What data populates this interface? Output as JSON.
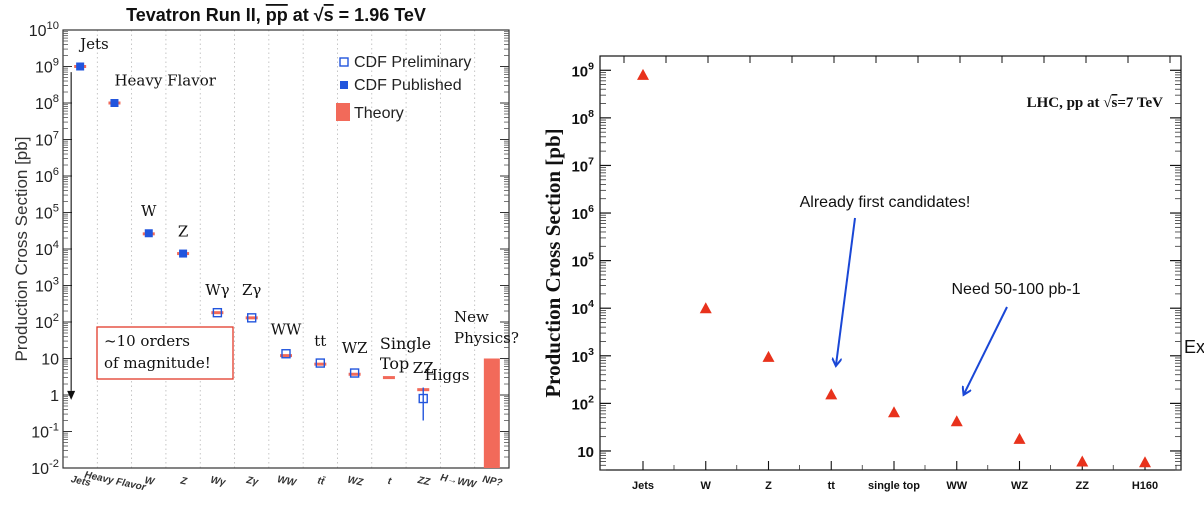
{
  "chart_data": [
    {
      "type": "scatter",
      "title": "Tevatron Run II, pp̄ at √s = 1.96 TeV",
      "title_parts": {
        "prefix": "Tevatron Run II, ",
        "pp": "pp",
        "mid": " at ",
        "s": "s",
        "suffix": " = 1.96 TeV"
      },
      "ylabel": "Production Cross Section [pb]",
      "yscale": "log",
      "ylim_exp": [
        -2,
        10
      ],
      "yticks": [
        {
          "v": 10000000000.0,
          "base": "10",
          "exp": "10"
        },
        {
          "v": 1000000000.0,
          "base": "10",
          "exp": "9"
        },
        {
          "v": 100000000.0,
          "base": "10",
          "exp": "8"
        },
        {
          "v": 10000000.0,
          "base": "10",
          "exp": "7"
        },
        {
          "v": 1000000.0,
          "base": "10",
          "exp": "6"
        },
        {
          "v": 100000.0,
          "base": "10",
          "exp": "5"
        },
        {
          "v": 10000.0,
          "base": "10",
          "exp": "4"
        },
        {
          "v": 1000.0,
          "base": "10",
          "exp": "3"
        },
        {
          "v": 100.0,
          "base": "10",
          "exp": "2"
        },
        {
          "v": 10,
          "base": "10",
          "exp": ""
        },
        {
          "v": 1,
          "base": "1",
          "exp": ""
        },
        {
          "v": 0.1,
          "base": "10",
          "exp": "-1"
        },
        {
          "v": 0.01,
          "base": "10",
          "exp": "-2"
        }
      ],
      "categories": [
        "Jets",
        "Heavy Flavor",
        "W",
        "Z",
        "Wγ",
        "Zγ",
        "WW",
        "tt̄",
        "WZ",
        "t",
        "ZZ",
        "H→WW",
        "NP?"
      ],
      "legend": {
        "position": "top-right",
        "entries": [
          {
            "label": "CDF Preliminary",
            "marker": "open-square",
            "color": "#2255dd"
          },
          {
            "label": "CDF Published",
            "marker": "filled-square",
            "color": "#2255dd"
          },
          {
            "label": "Theory",
            "marker": "bar",
            "color": "#f26a5a"
          }
        ]
      },
      "points": [
        {
          "label": "Jets",
          "x": 0,
          "y": 1000000000.0,
          "marker": "filled",
          "label_value": 3000000000.0
        },
        {
          "label": "Heavy Flavor",
          "x": 1,
          "y": 100000000.0,
          "marker": "filled",
          "label_value": 300000000.0
        },
        {
          "label": "W",
          "x": 2,
          "y": 27000.0,
          "marker": "filled",
          "label_value": 80000.0
        },
        {
          "label": "Z",
          "x": 3,
          "y": 7500.0,
          "marker": "filled",
          "label_value": 22000.0
        },
        {
          "label": "Wγ",
          "x": 4,
          "y": 180,
          "marker": "open",
          "label_value": 550
        },
        {
          "label": "Zγ",
          "x": 5,
          "y": 130,
          "marker": "open",
          "label_value": 550
        },
        {
          "label": "WW",
          "x": 6,
          "y": 13.5,
          "marker": "open",
          "label_value": 45
        },
        {
          "label": "tt",
          "x": 7,
          "y": 7.5,
          "marker": "open",
          "label_value": 22
        },
        {
          "label": "WZ",
          "x": 8,
          "y": 4,
          "marker": "open",
          "label_value": 14
        },
        {
          "label": "ZZ",
          "x": 10,
          "y": 0.8,
          "marker": "open",
          "err": [
            0.2,
            1.6
          ],
          "label_value": 4
        }
      ],
      "theory": [
        {
          "x": 0,
          "y": 1000000000.0
        },
        {
          "x": 1,
          "y": 100000000.0
        },
        {
          "x": 2,
          "y": 26000.0
        },
        {
          "x": 3,
          "y": 7500.0
        },
        {
          "x": 4,
          "y": 180
        },
        {
          "x": 5,
          "y": 130
        },
        {
          "x": 6,
          "y": 12
        },
        {
          "x": 7,
          "y": 7
        },
        {
          "x": 8,
          "y": 3.7
        },
        {
          "x": 9,
          "y": 3
        },
        {
          "x": 10,
          "y": 1.4
        }
      ],
      "theory_bar": {
        "x": 12,
        "y_low": 0.01,
        "y_high": 10
      },
      "annotations": {
        "box_line1": "~10 orders",
        "box_line2": "of magnitude!",
        "single_top_line1": "Single",
        "single_top_line2": "Top",
        "higgs": "Higgs",
        "new_physics_line1": "New",
        "new_physics_line2": "Physics?"
      }
    },
    {
      "type": "scatter",
      "title": "LHC, pp at √s=7 TeV",
      "title_parts": {
        "prefix": "LHC, pp at ",
        "s": "s",
        "suffix": "=7 TeV"
      },
      "ylabel": "Production Cross Section [pb]",
      "yscale": "log",
      "ylim_exp": [
        0.6,
        9.3
      ],
      "yticks": [
        {
          "v": 1000000000.0,
          "base": "10",
          "exp": "9"
        },
        {
          "v": 100000000.0,
          "base": "10",
          "exp": "8"
        },
        {
          "v": 10000000.0,
          "base": "10",
          "exp": "7"
        },
        {
          "v": 1000000.0,
          "base": "10",
          "exp": "6"
        },
        {
          "v": 100000.0,
          "base": "10",
          "exp": "5"
        },
        {
          "v": 10000.0,
          "base": "10",
          "exp": "4"
        },
        {
          "v": 1000.0,
          "base": "10",
          "exp": "3"
        },
        {
          "v": 100.0,
          "base": "10",
          "exp": "2"
        },
        {
          "v": 10,
          "base": "10",
          "exp": ""
        }
      ],
      "categories": [
        "Jets",
        "W",
        "Z",
        "tt",
        "single top",
        "WW",
        "WZ",
        "ZZ",
        "H160"
      ],
      "points": [
        {
          "label": "Jets",
          "x": 0,
          "y": 800000000.0
        },
        {
          "label": "W",
          "x": 1,
          "y": 10000.0
        },
        {
          "label": "Z",
          "x": 2,
          "y": 950
        },
        {
          "label": "tt",
          "x": 3,
          "y": 155
        },
        {
          "label": "single top",
          "x": 4,
          "y": 65
        },
        {
          "label": "WW",
          "x": 5,
          "y": 42
        },
        {
          "label": "WZ",
          "x": 6,
          "y": 18
        },
        {
          "label": "ZZ",
          "x": 7,
          "y": 6
        },
        {
          "label": "H160",
          "x": 8,
          "y": 5.8
        }
      ],
      "marker_color": "#e8321c",
      "arrow_color": "#1a47d6",
      "annotations": {
        "first_candidates": "Already first candidates!",
        "need_lumi": "Need 50-100 pb-1",
        "cut_off_text": "Ex"
      }
    }
  ]
}
